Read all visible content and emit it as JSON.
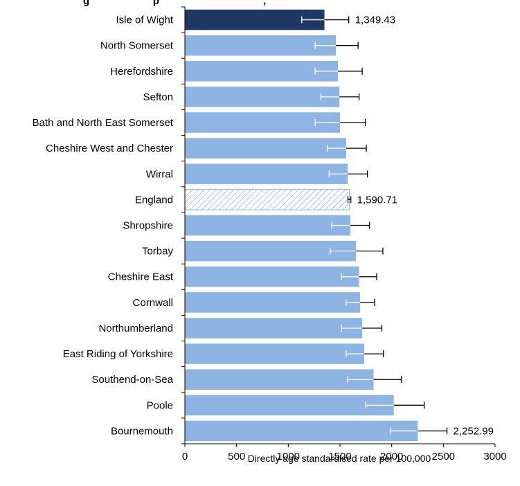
{
  "chart_data": {
    "type": "bar",
    "orientation": "horizontal",
    "title_fragment": "g                      p                                    ,",
    "xlabel": "Directly age standardised rate per 100,000",
    "ylabel": "",
    "xlim": [
      0,
      3000
    ],
    "xticks": [
      0,
      500,
      1000,
      1500,
      2000,
      2500,
      3000
    ],
    "xtick_labels": [
      "0",
      "500",
      "1000",
      "1500",
      "2000",
      "2500",
      "3000"
    ],
    "grid": false,
    "legend": "none",
    "categories": [
      "Isle of Wight",
      "North Somerset",
      "Herefordshire",
      "Sefton",
      "Bath and North East Somerset",
      "Cheshire West and Chester",
      "Wirral",
      "England",
      "Shropshire",
      "Torbay",
      "Cheshire East",
      "Cornwall",
      "Northumberland",
      "East Riding of Yorkshire",
      "Southend-on-Sea",
      "Poole",
      "Bournemouth"
    ],
    "values": [
      1349.43,
      1460,
      1480,
      1495,
      1500,
      1560,
      1575,
      1590.71,
      1600,
      1655,
      1685,
      1695,
      1715,
      1735,
      1825,
      2020,
      2252.99
    ],
    "ci_lower": [
      1130,
      1260,
      1260,
      1315,
      1260,
      1380,
      1395,
      1577,
      1420,
      1405,
      1515,
      1560,
      1515,
      1560,
      1575,
      1750,
      1990
    ],
    "ci_upper": [
      1585,
      1675,
      1715,
      1685,
      1745,
      1755,
      1765,
      1605,
      1785,
      1915,
      1855,
      1835,
      1905,
      1920,
      2095,
      2315,
      2535
    ],
    "value_labels": [
      "1,349.43",
      "",
      "",
      "",
      "",
      "",
      "",
      "1,590.71",
      "",
      "",
      "",
      "",
      "",
      "",
      "",
      "",
      "2,252.99"
    ],
    "bar_styles": [
      "highlight",
      "normal",
      "normal",
      "normal",
      "normal",
      "normal",
      "normal",
      "hatched",
      "normal",
      "normal",
      "normal",
      "normal",
      "normal",
      "normal",
      "normal",
      "normal",
      "normal"
    ],
    "colors": {
      "highlight": "#1f3864",
      "normal": "#8eb4e3",
      "hatched": "#8eb4e3",
      "axis": "#000000",
      "error_bar": "#000000"
    }
  }
}
